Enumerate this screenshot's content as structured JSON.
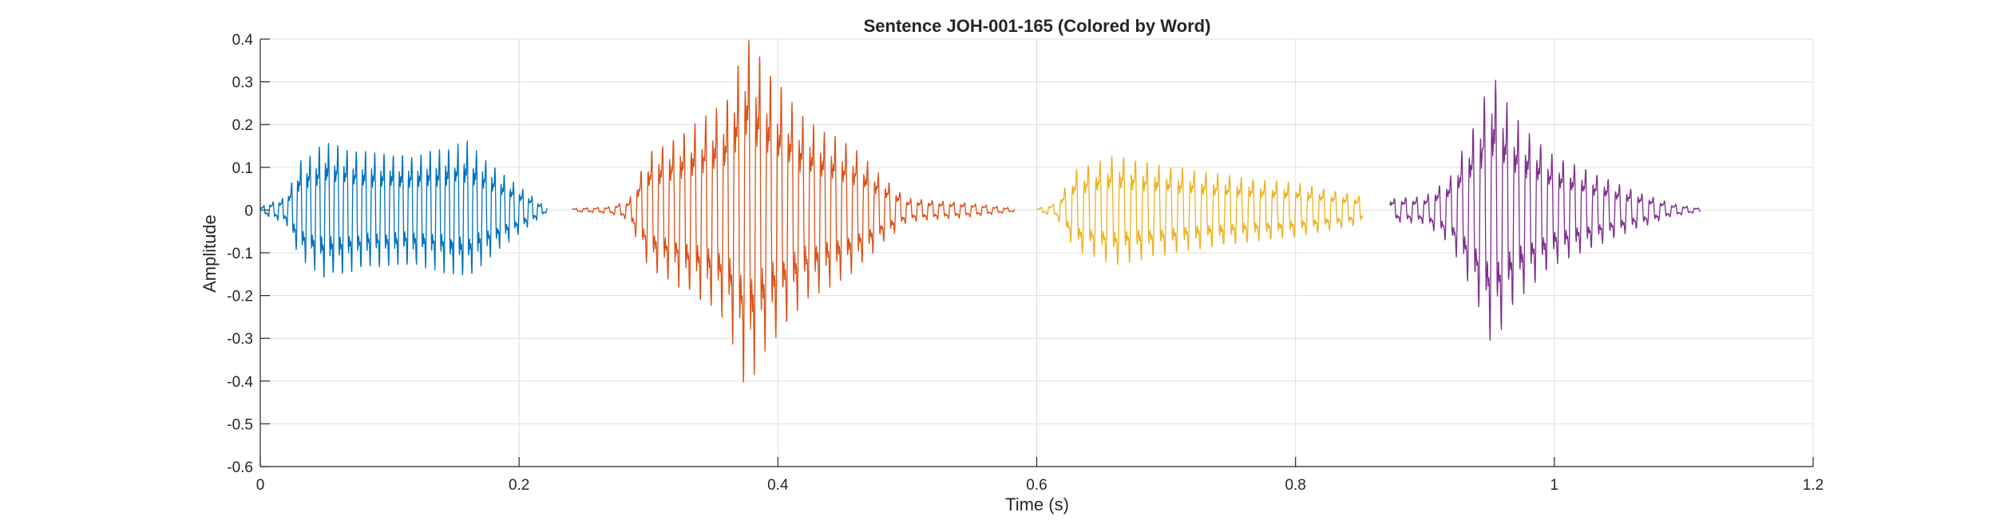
{
  "chart_data": {
    "type": "line",
    "title": "Sentence JOH-001-165 (Colored by Word)",
    "xlabel": "Time (s)",
    "ylabel": "Amplitude",
    "xlim": [
      0,
      1.2
    ],
    "ylim": [
      -0.6,
      0.4
    ],
    "xticks": [
      0,
      0.2,
      0.4,
      0.6,
      0.8,
      1,
      1.2
    ],
    "xtick_labels": [
      "0",
      "0.2",
      "0.4",
      "0.6",
      "0.8",
      "1",
      "1.2"
    ],
    "yticks": [
      -0.6,
      -0.5,
      -0.4,
      -0.3,
      -0.2,
      -0.1,
      0,
      0.1,
      0.2,
      0.3,
      0.4
    ],
    "ytick_labels": [
      "-0.6",
      "-0.5",
      "-0.4",
      "-0.3",
      "-0.2",
      "-0.1",
      "0",
      "0.1",
      "0.2",
      "0.3",
      "0.4"
    ],
    "grid": true,
    "series": [
      {
        "color": "#0072BD",
        "t_start": 0.0,
        "t_end": 0.222,
        "freq_hz": 140,
        "envelope": [
          [
            0.0,
            0.01
          ],
          [
            0.02,
            0.04
          ],
          [
            0.03,
            0.14
          ],
          [
            0.05,
            0.2
          ],
          [
            0.08,
            0.17
          ],
          [
            0.12,
            0.16
          ],
          [
            0.16,
            0.2
          ],
          [
            0.18,
            0.13
          ],
          [
            0.2,
            0.07
          ],
          [
            0.222,
            0.005
          ]
        ]
      },
      {
        "color": "#D95319",
        "t_start": 0.241,
        "t_end": 0.583,
        "freq_hz": 120,
        "envelope": [
          [
            0.241,
            0.005
          ],
          [
            0.27,
            0.01
          ],
          [
            0.285,
            0.03
          ],
          [
            0.3,
            0.17
          ],
          [
            0.33,
            0.24
          ],
          [
            0.36,
            0.32
          ],
          [
            0.375,
            0.52
          ],
          [
            0.39,
            0.42
          ],
          [
            0.42,
            0.27
          ],
          [
            0.46,
            0.18
          ],
          [
            0.48,
            0.1
          ],
          [
            0.5,
            0.035
          ],
          [
            0.55,
            0.02
          ],
          [
            0.583,
            0.005
          ]
        ]
      },
      {
        "color": "#EDB120",
        "t_start": 0.6,
        "t_end": 0.852,
        "freq_hz": 110,
        "envelope": [
          [
            0.6,
            0.005
          ],
          [
            0.615,
            0.02
          ],
          [
            0.63,
            0.12
          ],
          [
            0.66,
            0.16
          ],
          [
            0.7,
            0.13
          ],
          [
            0.75,
            0.1
          ],
          [
            0.8,
            0.08
          ],
          [
            0.852,
            0.04
          ]
        ]
      },
      {
        "color": "#7E2F8E",
        "t_start": 0.873,
        "t_end": 1.113,
        "freq_hz": 115,
        "envelope": [
          [
            0.873,
            0.035
          ],
          [
            0.9,
            0.04
          ],
          [
            0.92,
            0.1
          ],
          [
            0.94,
            0.27
          ],
          [
            0.952,
            0.4
          ],
          [
            0.97,
            0.27
          ],
          [
            1.0,
            0.16
          ],
          [
            1.03,
            0.11
          ],
          [
            1.06,
            0.06
          ],
          [
            1.09,
            0.02
          ],
          [
            1.113,
            0.005
          ]
        ]
      }
    ]
  }
}
